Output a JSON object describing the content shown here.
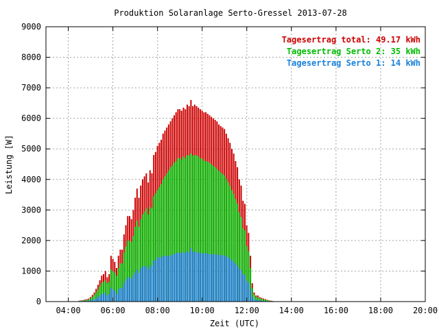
{
  "chart_data": {
    "type": "bar",
    "title": "Produktion Solaranlage Serto-Gressel 2013-07-28",
    "xlabel": "Zeit (UTC)",
    "ylabel": "Leistung [W]",
    "xlim": [
      3.0,
      20.0
    ],
    "ylim": [
      0,
      9000
    ],
    "x_ticks": [
      "04:00",
      "06:00",
      "08:00",
      "10:00",
      "12:00",
      "14:00",
      "16:00",
      "18:00",
      "20:00"
    ],
    "y_ticks": [
      "0",
      "1000",
      "2000",
      "3000",
      "4000",
      "5000",
      "6000",
      "7000",
      "8000",
      "9000"
    ],
    "grid": true,
    "legend_position": "top-right",
    "legend": [
      {
        "text": "Tagesertrag total: 49.17 kWh",
        "color": "#cc0000"
      },
      {
        "text": "Tagesertrag Serto 2: 35 kWh",
        "color": "#00bb00"
      },
      {
        "text": "Tagesertrag Serto 1: 14 kWh",
        "color": "#1a80d9"
      }
    ],
    "colors": {
      "total": "#cc0000",
      "serto2": "#00bb00",
      "serto1": "#1a80d9"
    },
    "x_sample_step_hours": 0.0833,
    "series": [
      {
        "name": "Tagesertrag total: 49.17 kWh",
        "start_hour": 4.5,
        "values": [
          30,
          40,
          50,
          70,
          80,
          100,
          150,
          220,
          300,
          420,
          550,
          700,
          850,
          900,
          1000,
          800,
          900,
          1500,
          1400,
          1300,
          1100,
          1500,
          1700,
          1700,
          2200,
          2500,
          2800,
          2800,
          2700,
          3000,
          3400,
          3700,
          3400,
          3800,
          4000,
          4100,
          4200,
          3900,
          4300,
          4200,
          4800,
          4900,
          5100,
          5200,
          5300,
          5500,
          5600,
          5700,
          5800,
          5900,
          6000,
          6100,
          6200,
          6300,
          6300,
          6250,
          6350,
          6300,
          6450,
          6400,
          6600,
          6400,
          6450,
          6400,
          6350,
          6300,
          6250,
          6200,
          6200,
          6150,
          6100,
          6050,
          6000,
          5950,
          5900,
          5800,
          5750,
          5700,
          5650,
          5500,
          5350,
          5200,
          5000,
          4850,
          4600,
          4400,
          4000,
          3800,
          3300,
          3200,
          2500,
          2250,
          1500,
          600,
          300,
          200,
          200,
          150,
          120,
          100,
          80,
          60,
          40,
          30,
          20,
          10,
          5
        ]
      },
      {
        "name": "Tagesertrag Serto 2: 35 kWh",
        "start_hour": 4.5,
        "values": [
          20,
          25,
          35,
          50,
          55,
          70,
          110,
          160,
          220,
          300,
          400,
          500,
          600,
          650,
          700,
          600,
          650,
          1050,
          1000,
          950,
          850,
          1100,
          1250,
          1250,
          1600,
          1800,
          2000,
          2000,
          1950,
          2150,
          2450,
          2650,
          2450,
          2700,
          2850,
          2950,
          3050,
          2850,
          3100,
          3050,
          3450,
          3550,
          3650,
          3750,
          3850,
          4000,
          4100,
          4200,
          4300,
          4400,
          4450,
          4550,
          4600,
          4700,
          4700,
          4650,
          4750,
          4700,
          4800,
          4780,
          4850,
          4780,
          4800,
          4780,
          4750,
          4700,
          4680,
          4620,
          4600,
          4580,
          4550,
          4500,
          4450,
          4400,
          4350,
          4280,
          4230,
          4180,
          4130,
          4020,
          3900,
          3790,
          3650,
          3530,
          3360,
          3210,
          2920,
          2770,
          2400,
          2330,
          1820,
          1640,
          1100,
          440,
          220,
          150,
          150,
          110,
          90,
          75,
          60,
          45,
          30,
          20,
          15,
          8,
          3
        ]
      },
      {
        "name": "Tagesertrag Serto 1: 14 kWh",
        "start_hour": 4.5,
        "values": [
          10,
          15,
          15,
          20,
          25,
          30,
          40,
          60,
          80,
          120,
          150,
          200,
          250,
          250,
          300,
          200,
          250,
          450,
          400,
          350,
          250,
          400,
          450,
          450,
          600,
          700,
          800,
          800,
          750,
          850,
          950,
          1050,
          950,
          1100,
          1150,
          1150,
          1150,
          1050,
          1200,
          1150,
          1350,
          1350,
          1450,
          1450,
          1450,
          1500,
          1500,
          1500,
          1500,
          1500,
          1550,
          1550,
          1600,
          1600,
          1600,
          1600,
          1600,
          1600,
          1650,
          1620,
          1750,
          1620,
          1650,
          1620,
          1600,
          1600,
          1570,
          1580,
          1600,
          1570,
          1550,
          1550,
          1550,
          1550,
          1550,
          1520,
          1520,
          1520,
          1520,
          1480,
          1450,
          1410,
          1350,
          1320,
          1240,
          1190,
          1080,
          1030,
          900,
          870,
          680,
          610,
          400,
          160,
          80,
          50,
          50,
          40,
          30,
          25,
          20,
          15,
          10,
          10,
          5,
          2,
          2
        ]
      }
    ]
  }
}
